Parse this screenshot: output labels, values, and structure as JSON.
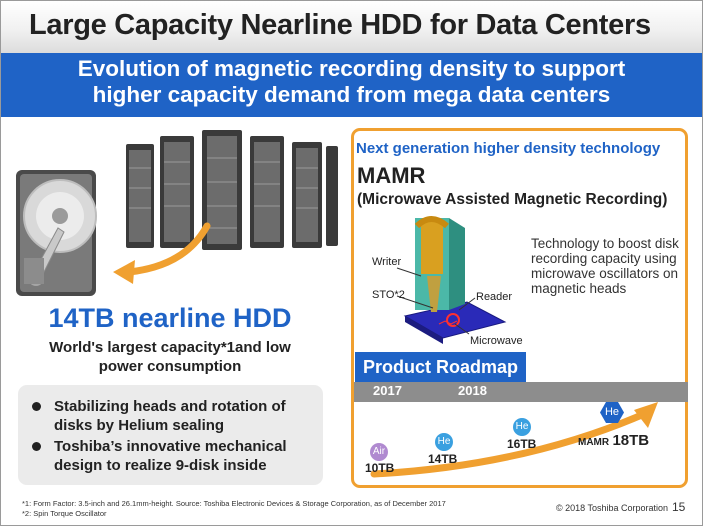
{
  "slide": {
    "title": "Large Capacity Nearline HDD for Data Centers",
    "subtitle_line1": "Evolution of magnetic recording density to support",
    "subtitle_line2": "higher capacity demand from mega data centers"
  },
  "left": {
    "capacity_title": "14TB nearline HDD",
    "capacity_desc_line1": "World's largest capacity*1and low",
    "capacity_desc_line2": "power consumption",
    "features": [
      {
        "line1": "Stabilizing heads and rotation of",
        "line2": "disks by Helium sealing"
      },
      {
        "line1": "Toshiba’s innovative mechanical",
        "line2": "design to realize 9-disk inside"
      }
    ]
  },
  "right": {
    "heading": "Next generation higher density technology",
    "tech_name": "MAMR",
    "tech_full": "(Microwave Assisted Magnetic Recording)",
    "diagram_labels": {
      "writer": "Writer",
      "sto": "STO*2",
      "reader": "Reader",
      "microwave": "Microwave"
    },
    "tech_desc": "Technology to boost disk recording capacity using microwave oscillators on magnetic heads",
    "roadmap": {
      "title": "Product Roadmap",
      "years": [
        "2017",
        "2018"
      ],
      "items": [
        {
          "badge": "Air",
          "capacity": "10TB",
          "color": "#b08ad0"
        },
        {
          "badge": "He",
          "capacity": "14TB",
          "color": "#3aa0e0"
        },
        {
          "badge": "He",
          "capacity": "16TB",
          "color": "#3aa0e0"
        },
        {
          "badge": "He",
          "prefix": "MAMR",
          "capacity": "18TB",
          "color": "#1f63c6"
        }
      ]
    }
  },
  "footer": {
    "note1": "*1: Form Factor: 3.5-inch and 26.1mm-height. Source: Toshiba Electronic Devices & Storage Corporation, as of December 2017",
    "note2": "*2: Spin Torque Oscillator",
    "copyright": "© 2018 Toshiba Corporation",
    "page": "15"
  },
  "colors": {
    "accent": "#1f63c6",
    "panel_border": "#f0a030",
    "arrow": "#f0a030"
  }
}
